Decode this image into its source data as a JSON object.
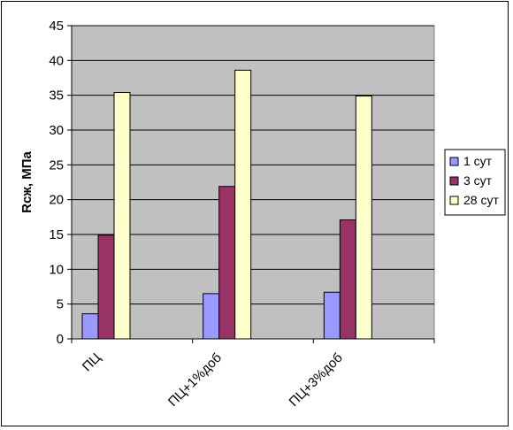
{
  "chart_data": {
    "type": "bar",
    "title": "",
    "xlabel": "",
    "ylabel": "Rcж, МПа",
    "ylim": [
      0,
      45
    ],
    "yticks": [
      0,
      5,
      10,
      15,
      20,
      25,
      30,
      35,
      40,
      45
    ],
    "grid": true,
    "legend_position": "right",
    "plot_background": "#c0c0c0",
    "categories": [
      "ПЦ",
      "ПЦ+1%доб",
      "ПЦ+3%доб"
    ],
    "series": [
      {
        "name": "1 сут",
        "color": "#9999ff",
        "values": [
          3.6,
          6.5,
          6.7
        ]
      },
      {
        "name": "3 сут",
        "color": "#993366",
        "values": [
          14.9,
          21.9,
          17.1
        ]
      },
      {
        "name": "28 сут",
        "color": "#ffffcc",
        "values": [
          35.4,
          38.6,
          34.9
        ]
      }
    ]
  }
}
